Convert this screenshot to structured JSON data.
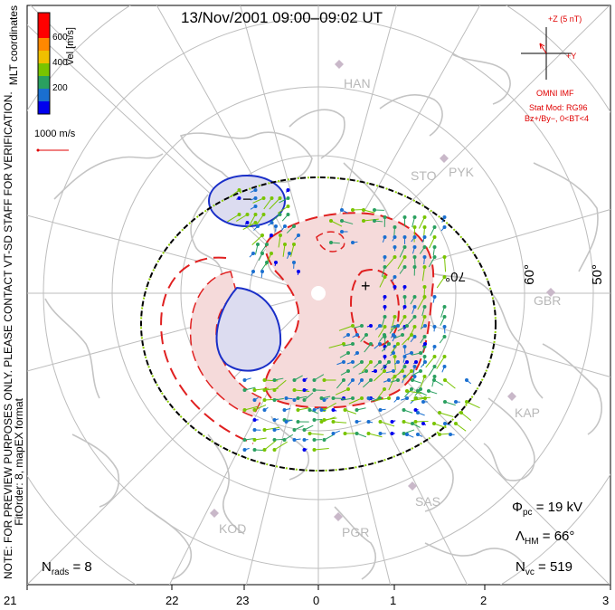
{
  "title": "13/Nov/2001 09:00–09:02 UT",
  "coordinates_label": "MLT coordinates",
  "colorbar": {
    "label": "Vel [m/s]",
    "ticks": [
      "600",
      "400",
      "200"
    ],
    "colors": [
      "#0000ee",
      "#1a6fd0",
      "#2aa060",
      "#79c400",
      "#f0c000",
      "#ff8800",
      "#ff0000"
    ]
  },
  "ref_vector_label": "1000 m/s",
  "imf": {
    "bz_label": "+Z (5 nT)",
    "by_label": "+Y",
    "source": "OMNI IMF",
    "stat_mod": "Stat Mod: RG96",
    "condition": "Bz+/By−, 0<BT<4"
  },
  "notes": {
    "preview": "NOTE: FOR PREVIEW PURPOSES ONLY. PLEASE CONTACT VT-SD STAFF FOR VERIFICATION.",
    "fit": "FitOrder: 8, mapEX format"
  },
  "stats": {
    "phi_sym": "Φ",
    "phi_sub": "pc",
    "phi_val": "= 19 kV",
    "lambda_sym": "Λ",
    "lambda_sub": "HM",
    "lambda_val": "= 66°",
    "nvc_sym": "N",
    "nvc_sub": "vc",
    "nvc_val": "= 519",
    "nrads_sym": "N",
    "nrads_sub": "rads",
    "nrads_val": "= 8"
  },
  "mlt_labels": [
    "21",
    "22",
    "23",
    "0",
    "1",
    "2",
    "3"
  ],
  "latitude_labels": [
    "70°",
    "60°",
    "50°"
  ],
  "radar_sites": [
    "HAN",
    "STO",
    "PYK",
    "GBR",
    "KAP",
    "SAS",
    "PGR",
    "KOD"
  ],
  "potential_contours": {
    "negative_label": "−",
    "positive_label": "+"
  }
}
